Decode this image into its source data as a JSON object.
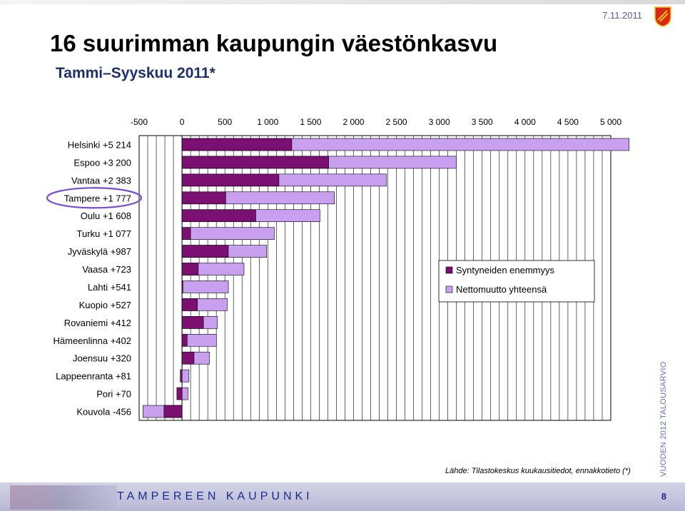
{
  "header": {
    "date": "7.11.2011",
    "title": "16 suurimman kaupungin väestönkasvu",
    "subtitle": "Tammi–Syyskuu 2011*"
  },
  "side_text": "VUODEN 2012 TALOUSARVIO",
  "source": "Lähde: Tilastokeskus kuukausitiedot, ennakkotieto (*)",
  "footer": {
    "org": "TAMPEREEN KAUPUNKI",
    "page": "8"
  },
  "colors": {
    "series1": "#7b0f72",
    "series2": "#c9a0f0",
    "accent": "#1d2a8c",
    "highlight": "#7a4bd6"
  },
  "chart_data": {
    "type": "bar",
    "orientation": "horizontal",
    "stacked": false,
    "xlim": [
      -500,
      5000
    ],
    "x_ticks": [
      "-500",
      "0",
      "500",
      "1 000",
      "1 500",
      "2 000",
      "2 500",
      "3 000",
      "3 500",
      "4 000",
      "4 500",
      "5 000"
    ],
    "categories": [
      "Helsinki +5 214",
      "Espoo +3 200",
      "Vantaa +2 383",
      "Tampere +1 777",
      "Oulu +1 608",
      "Turku +1 077",
      "Jyväskylä +987",
      "Vaasa +723",
      "Lahti +541",
      "Kuopio +527",
      "Rovaniemi +412",
      "Hämeenlinna +402",
      "Joensuu +320",
      "Lappeenranta +81",
      "Pori +70",
      "Kouvola -456"
    ],
    "highlighted_category": "Tampere +1 777",
    "series": [
      {
        "name": "Syntyneiden enemmyys",
        "values": [
          1280,
          1710,
          1130,
          510,
          860,
          100,
          540,
          190,
          10,
          180,
          250,
          60,
          140,
          -20,
          -60,
          -210
        ]
      },
      {
        "name": "Nettomuutto yhteensä",
        "values": [
          5214,
          3200,
          2383,
          1777,
          1608,
          1077,
          987,
          723,
          541,
          527,
          412,
          402,
          320,
          81,
          70,
          -456
        ]
      }
    ],
    "legend_position": "right",
    "grid": true
  }
}
